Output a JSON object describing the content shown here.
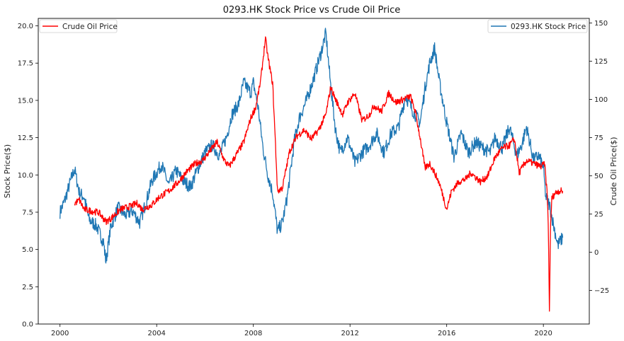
{
  "chart_data": {
    "type": "line",
    "title": "0293.HK Stock Price vs Crude Oil Price",
    "xlabel": "",
    "ylabel_left": "Stock Price($)",
    "ylabel_right": "Crude Oil Price($)",
    "x_ticks": [
      "2000",
      "2004",
      "2008",
      "2012",
      "2016",
      "2020"
    ],
    "xlim": [
      1999.1,
      2021.9
    ],
    "ylim_left": [
      0.0,
      20.5
    ],
    "ylim_right": [
      -47,
      153
    ],
    "y_ticks_left": [
      "0.0",
      "2.5",
      "5.0",
      "7.5",
      "10.0",
      "12.5",
      "15.0",
      "17.5",
      "20.0"
    ],
    "y_ticks_right": [
      "−25",
      "0",
      "25",
      "50",
      "75",
      "100",
      "125",
      "150"
    ],
    "legend_left": {
      "placement": "top-left",
      "label": "Crude Oil Price"
    },
    "legend_right": {
      "placement": "top-right",
      "label": "0293.HK Stock Price"
    },
    "colors": {
      "stock": "#1f77b4",
      "oil": "#ff0000"
    },
    "series": [
      {
        "name": "0293.HK Stock Price",
        "axis": "left",
        "x": [
          2000.0,
          2000.2,
          2000.4,
          2000.6,
          2000.8,
          2001.0,
          2001.2,
          2001.5,
          2001.8,
          2001.9,
          2002.1,
          2002.4,
          2002.7,
          2003.0,
          2003.3,
          2003.6,
          2003.8,
          2004.2,
          2004.5,
          2004.8,
          2005.1,
          2005.4,
          2005.7,
          2006.0,
          2006.3,
          2006.6,
          2006.9,
          2007.1,
          2007.4,
          2007.6,
          2007.9,
          2008.0,
          2008.2,
          2008.4,
          2008.6,
          2008.8,
          2009.0,
          2009.2,
          2009.4,
          2009.7,
          2009.9,
          2010.2,
          2010.5,
          2010.8,
          2011.0,
          2011.2,
          2011.4,
          2011.6,
          2011.9,
          2012.2,
          2012.5,
          2012.8,
          2013.1,
          2013.4,
          2013.7,
          2014.0,
          2014.3,
          2014.6,
          2014.9,
          2015.1,
          2015.3,
          2015.5,
          2015.7,
          2016.0,
          2016.3,
          2016.6,
          2016.9,
          2017.2,
          2017.5,
          2017.8,
          2018.0,
          2018.3,
          2018.6,
          2018.9,
          2019.1,
          2019.3,
          2019.6,
          2019.8,
          2020.0,
          2020.1,
          2020.25,
          2020.4,
          2020.6,
          2020.8
        ],
        "values": [
          7.5,
          8.3,
          9.4,
          10.4,
          8.8,
          8.5,
          7.0,
          6.6,
          5.5,
          4.2,
          6.5,
          7.8,
          7.3,
          7.6,
          6.8,
          8.4,
          9.6,
          10.7,
          9.3,
          10.3,
          9.6,
          9.2,
          10.4,
          11.5,
          12.0,
          11.3,
          12.6,
          14.0,
          14.8,
          16.2,
          15.5,
          16.2,
          14.5,
          11.8,
          10.0,
          8.8,
          6.2,
          6.8,
          8.5,
          12.3,
          13.8,
          15.0,
          16.5,
          18.2,
          19.5,
          16.0,
          13.0,
          11.5,
          12.5,
          10.8,
          11.5,
          12.0,
          12.8,
          11.5,
          12.8,
          13.2,
          15.3,
          14.3,
          13.5,
          15.8,
          17.5,
          18.5,
          16.2,
          13.5,
          11.2,
          12.8,
          11.5,
          12.2,
          11.8,
          11.5,
          12.5,
          11.8,
          13.2,
          11.3,
          12.0,
          13.2,
          11.0,
          11.3,
          10.5,
          8.5,
          8.0,
          6.8,
          5.3,
          5.8
        ]
      },
      {
        "name": "Crude Oil Price",
        "axis": "right",
        "x": [
          2000.6,
          2000.8,
          2001.0,
          2001.3,
          2001.6,
          2001.9,
          2002.1,
          2002.5,
          2002.9,
          2003.2,
          2003.4,
          2003.8,
          2004.1,
          2004.5,
          2004.9,
          2005.2,
          2005.6,
          2005.9,
          2006.2,
          2006.5,
          2006.8,
          2007.0,
          2007.3,
          2007.6,
          2007.9,
          2008.1,
          2008.3,
          2008.5,
          2008.6,
          2008.8,
          2008.9,
          2009.0,
          2009.2,
          2009.5,
          2009.8,
          2010.1,
          2010.4,
          2010.7,
          2011.0,
          2011.2,
          2011.4,
          2011.7,
          2011.9,
          2012.2,
          2012.5,
          2012.8,
          2013.0,
          2013.3,
          2013.6,
          2013.9,
          2014.2,
          2014.5,
          2014.7,
          2014.9,
          2015.1,
          2015.3,
          2015.5,
          2015.7,
          2015.9,
          2016.0,
          2016.2,
          2016.5,
          2016.8,
          2017.0,
          2017.4,
          2017.7,
          2018.0,
          2018.3,
          2018.6,
          2018.8,
          2019.0,
          2019.3,
          2019.6,
          2019.9,
          2020.05,
          2020.15,
          2020.2,
          2020.25,
          2020.3,
          2020.35,
          2020.45,
          2020.6,
          2020.8
        ],
        "values": [
          32,
          34,
          28,
          27,
          26,
          20,
          22,
          28,
          30,
          32,
          28,
          31,
          36,
          40,
          46,
          52,
          58,
          60,
          66,
          72,
          60,
          56,
          64,
          72,
          88,
          95,
          112,
          140,
          128,
          110,
          76,
          40,
          42,
          66,
          76,
          80,
          74,
          80,
          90,
          108,
          100,
          90,
          98,
          104,
          86,
          90,
          96,
          92,
          104,
          98,
          100,
          102,
          92,
          75,
          55,
          58,
          52,
          45,
          34,
          28,
          40,
          46,
          48,
          52,
          46,
          50,
          62,
          68,
          70,
          74,
          52,
          60,
          58,
          56,
          58,
          40,
          20,
          -37,
          18,
          35,
          38,
          40,
          40
        ]
      }
    ]
  }
}
